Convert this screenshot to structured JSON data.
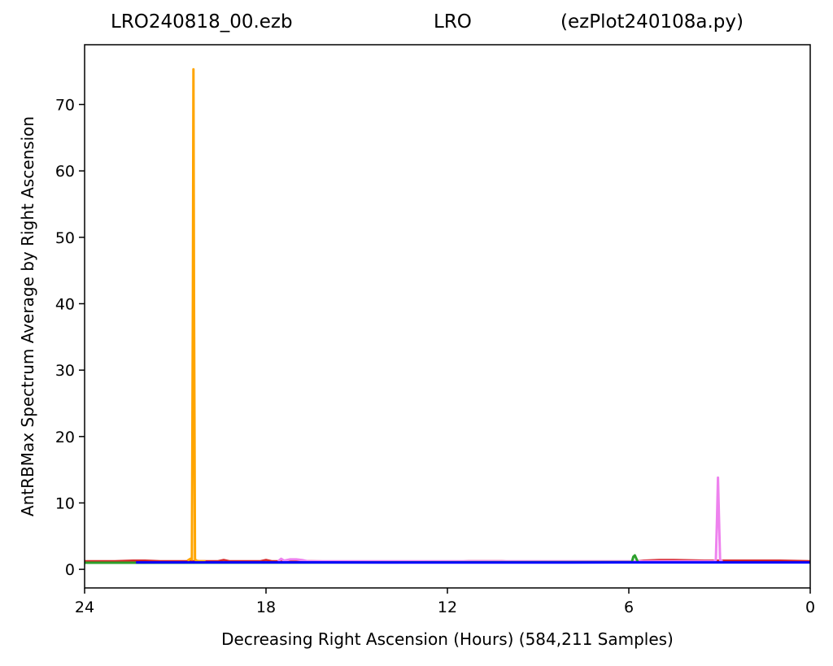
{
  "chart_data": {
    "type": "line",
    "title_parts": [
      "LRO240818_00.ezb",
      "LRO",
      "(ezPlot240108a.py)"
    ],
    "xlabel": "Decreasing Right Ascension (Hours) (584,211 Samples)",
    "ylabel": "AntRBMax Spectrum Average by Right Ascension",
    "xlim": [
      24,
      0
    ],
    "ylim": [
      -2.8,
      79
    ],
    "x_ticks": [
      24,
      18,
      12,
      6,
      0
    ],
    "y_ticks": [
      0,
      10,
      20,
      30,
      40,
      50,
      60,
      70
    ],
    "x_tick_labels": [
      "24",
      "18",
      "12",
      "6",
      "0"
    ],
    "y_tick_labels": [
      "0",
      "10",
      "20",
      "30",
      "40",
      "50",
      "60",
      "70"
    ],
    "grid": false,
    "series": [
      {
        "color": "#d62728",
        "x": [
          24,
          23,
          22.4,
          22.2,
          22,
          21.5,
          21,
          20.5,
          19.6,
          19.4,
          19.2,
          18.6,
          18.2,
          18,
          17.8,
          17.4,
          16.5,
          15,
          13.5,
          12,
          11.3,
          11,
          10.2,
          9.6,
          8,
          6,
          5.5,
          5,
          4.5,
          3.5,
          3.05,
          2.7,
          2,
          1,
          0
        ],
        "y": [
          1.2,
          1.2,
          1.3,
          1.3,
          1.3,
          1.2,
          1.2,
          1.2,
          1.2,
          1.4,
          1.2,
          1.2,
          1.2,
          1.4,
          1.2,
          1.2,
          1.2,
          1.1,
          1.1,
          1.1,
          1.2,
          1.2,
          1.2,
          1.1,
          1.1,
          1.1,
          1.3,
          1.4,
          1.4,
          1.3,
          1.3,
          1.3,
          1.3,
          1.3,
          1.2
        ]
      },
      {
        "color": "#ffa500",
        "x": [
          20.6,
          20.5,
          20.45,
          20.42,
          20.4,
          20.38,
          20.35,
          20.3,
          20.2,
          20.0
        ],
        "y": [
          1.3,
          1.6,
          1.5,
          40,
          75.3,
          40,
          1.5,
          1.3,
          1.2,
          1.2
        ]
      },
      {
        "color": "#ee82ee",
        "x": [
          17.6,
          17.5,
          17.4,
          17.2,
          17.0,
          16.8,
          16.6,
          3.2,
          3.12,
          3.08,
          3.05,
          3.02,
          2.98,
          2.9
        ],
        "y": [
          1.2,
          1.6,
          1.3,
          1.5,
          1.5,
          1.4,
          1.2,
          1.2,
          1.4,
          8,
          13.8,
          8,
          1.4,
          1.2
        ]
      },
      {
        "color": "#2ca02c",
        "x": [
          24,
          23.5,
          23,
          22.5,
          22.3,
          5.9,
          5.85,
          5.8,
          5.75,
          5.7
        ],
        "y": [
          1.0,
          1.0,
          1.0,
          1.0,
          1.0,
          1.1,
          1.9,
          2.1,
          1.6,
          1.1
        ]
      },
      {
        "color": "#0000ff",
        "x": [
          22.3,
          20,
          18,
          16,
          14,
          12,
          10,
          8,
          6,
          4,
          2,
          0
        ],
        "y": [
          1.05,
          1.05,
          1.05,
          1.05,
          1.02,
          1.02,
          1.02,
          1.02,
          1.05,
          1.05,
          1.05,
          1.05
        ]
      }
    ]
  }
}
